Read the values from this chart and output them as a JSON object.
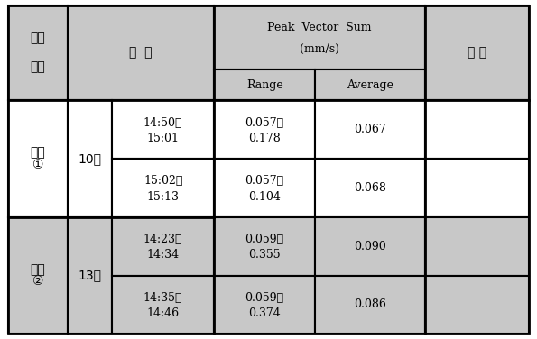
{
  "header_bg": "#c8c8c8",
  "cell_bg": "#ffffff",
  "border_color": "#000000",
  "fig_bg": "#ffffff",
  "col1_header_line1": "측정",
  "col1_header_line2": "위치",
  "col2_header": "일  시",
  "col3_header_line1": "Peak  Vector  Sum",
  "col3_header_line2": "(mm/s)",
  "col3a_header": "Range",
  "col3b_header": "Average",
  "col4_header": "비 고",
  "loc1_line1": "위치",
  "loc1_line2": "①",
  "loc2_line1": "위치",
  "loc2_line2": "②",
  "month1": "10월",
  "month2": "13일",
  "rows": [
    {
      "time_line1": "14:50～",
      "time_line2": "15:01",
      "range_line1": "0.057～",
      "range_line2": "0.178",
      "average": "0.067"
    },
    {
      "time_line1": "15:02～",
      "time_line2": "15:13",
      "range_line1": "0.057～",
      "range_line2": "0.104",
      "average": "0.068"
    },
    {
      "time_line1": "14:23～",
      "time_line2": "14:34",
      "range_line1": "0.059～",
      "range_line2": "0.355",
      "average": "0.090"
    },
    {
      "time_line1": "14:35～",
      "time_line2": "14:46",
      "range_line1": "0.059～",
      "range_line2": "0.374",
      "average": "0.086"
    }
  ],
  "figsize": [
    5.95,
    3.76
  ],
  "dpi": 100
}
